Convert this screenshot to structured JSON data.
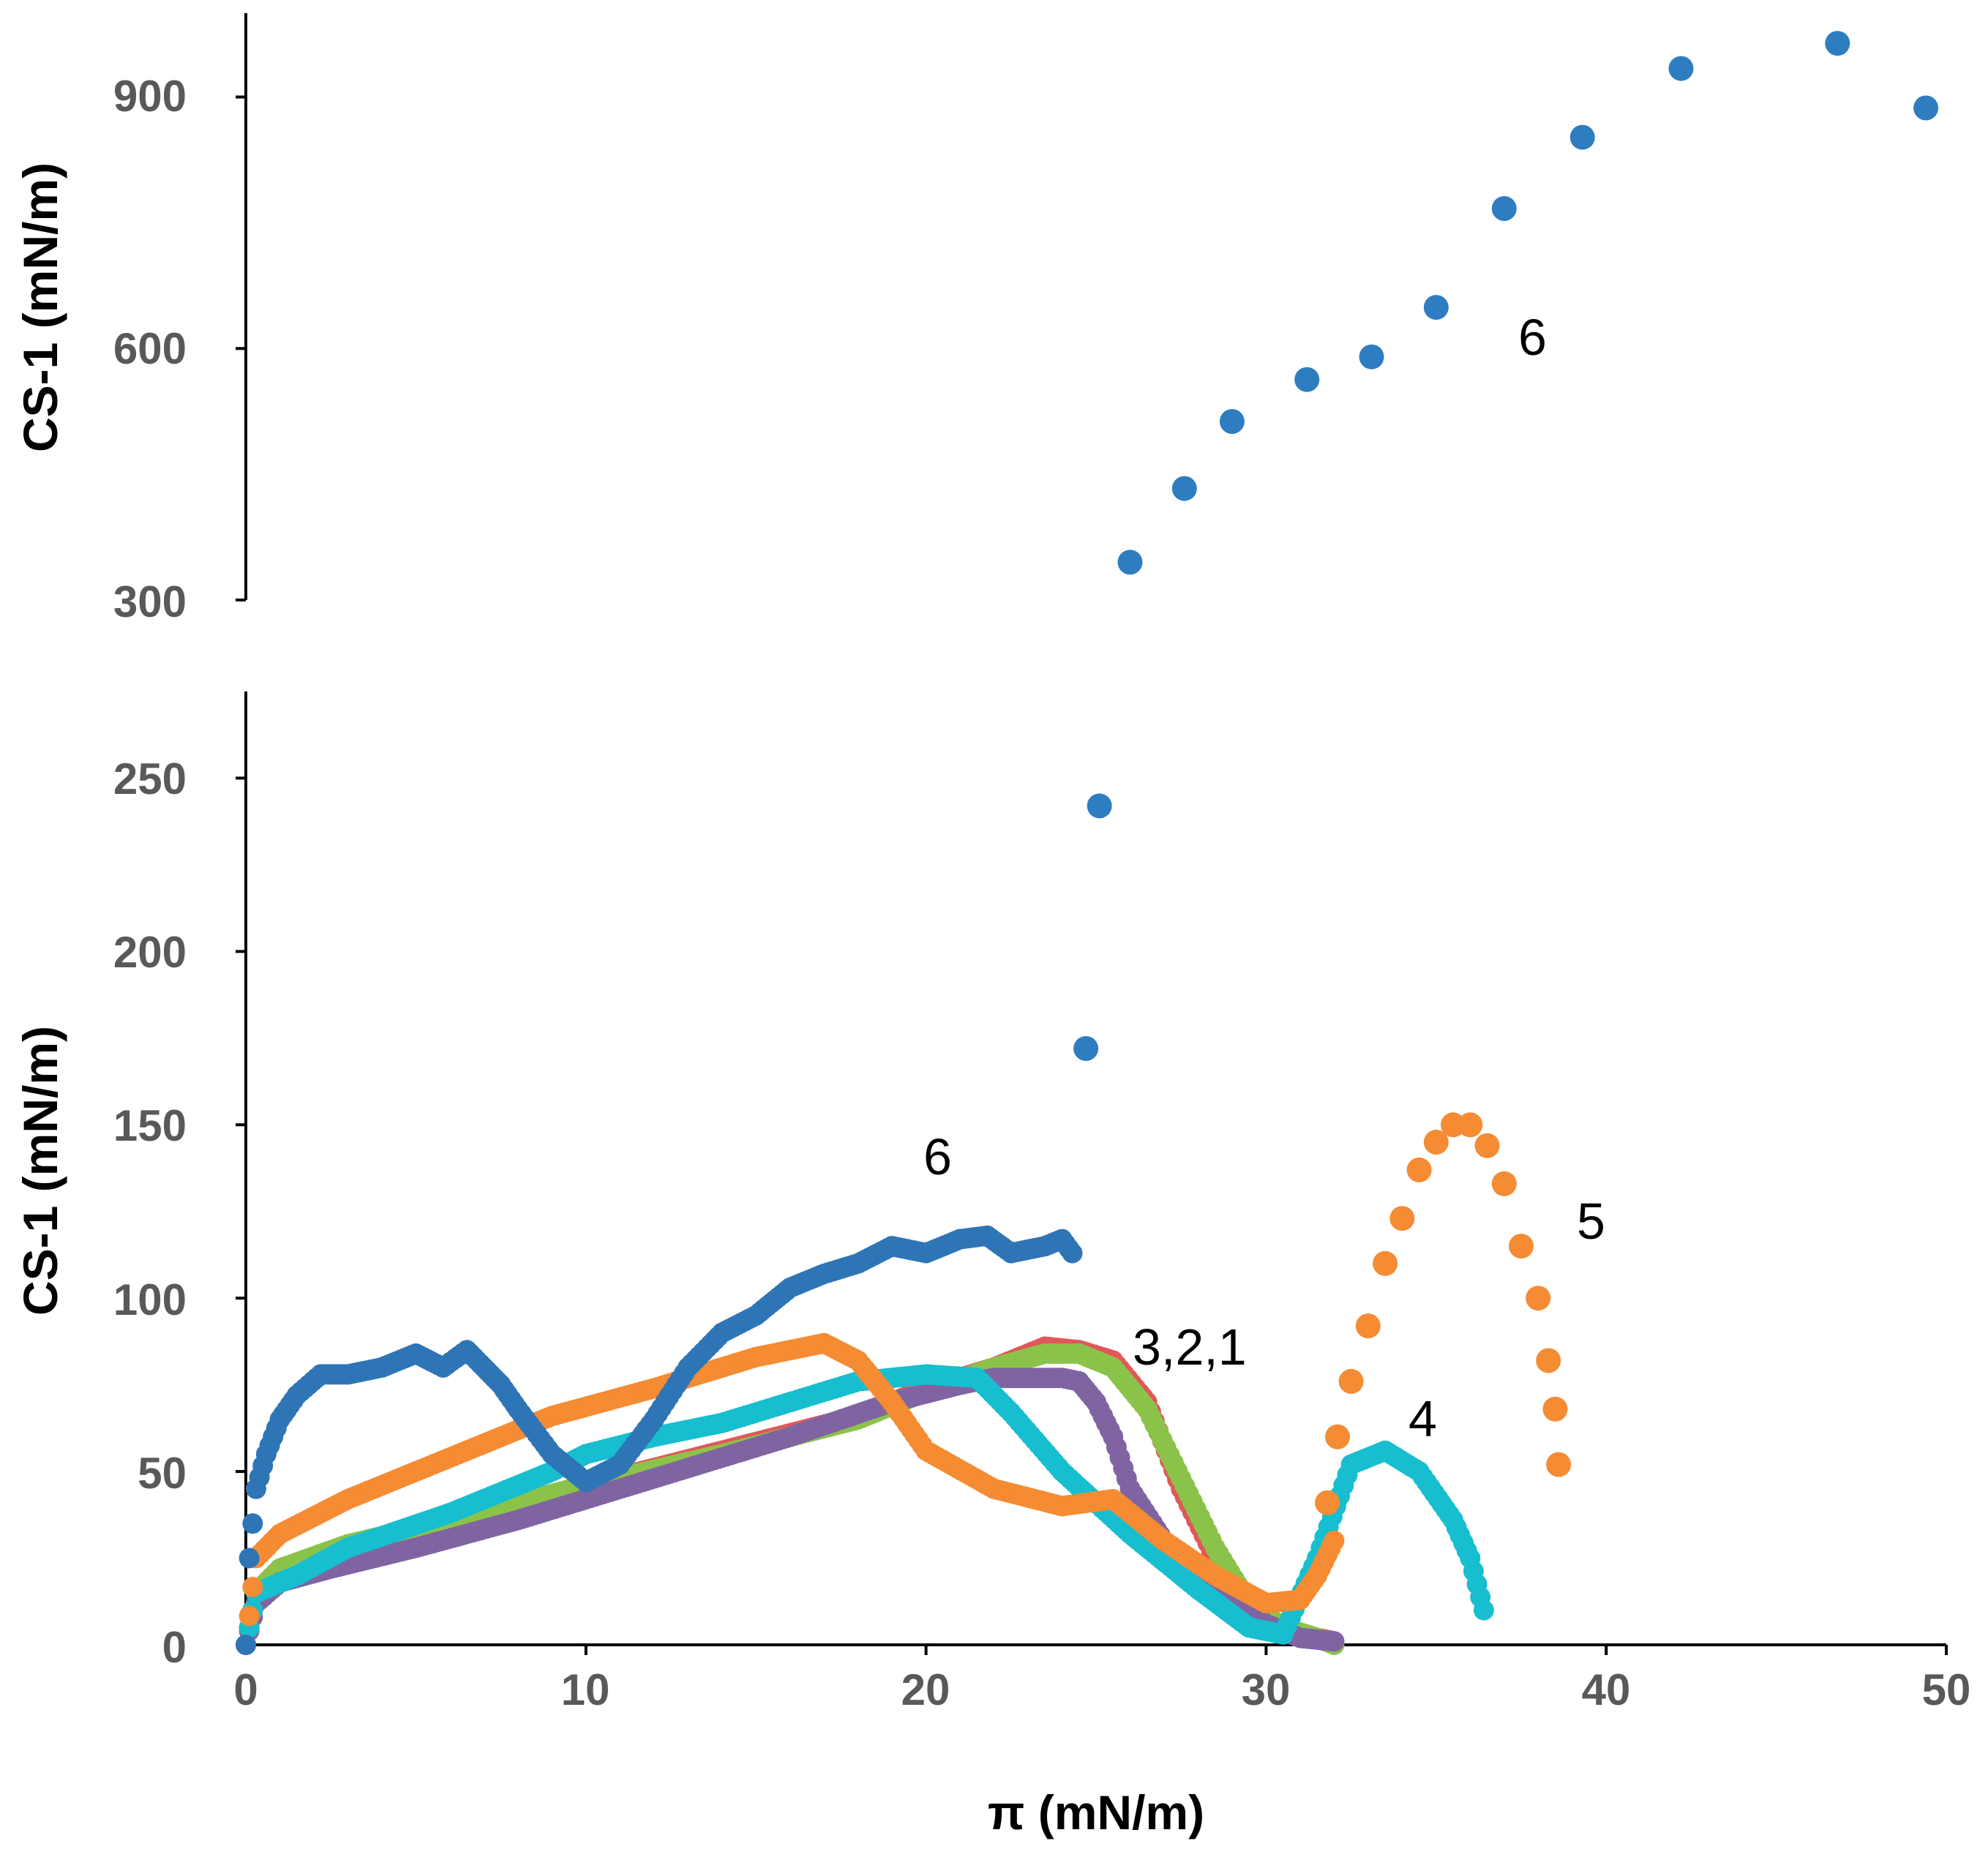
{
  "chart_data": {
    "type": "scatter",
    "title": "",
    "xlabel": "π (mN/m)",
    "xlim": [
      0,
      50
    ],
    "x_ticks": [
      "0",
      "10",
      "20",
      "30",
      "40",
      "50"
    ],
    "panels": [
      {
        "name": "upper",
        "ylabel": "CS-1 (mN/m)",
        "ylim": [
          300,
          1000
        ],
        "y_ticks": [
          "300",
          "600",
          "900"
        ],
        "series": [
          {
            "name": "6 (high)",
            "color": "#2E7DC1",
            "x": [
              26.0,
              27.6,
              29.0,
              31.2,
              33.1,
              35.0,
              37.0,
              39.3,
              42.2,
              46.8,
              49.4
            ],
            "y": [
              345,
              433,
              513,
              563,
              590,
              649,
              767,
              852,
              934,
              964,
              887
            ]
          }
        ]
      },
      {
        "name": "lower",
        "ylabel": "CS-1 (mN/m)",
        "ylim": [
          0,
          275
        ],
        "y_ticks": [
          "0",
          "50",
          "100",
          "150",
          "200",
          "250"
        ],
        "series": [
          {
            "name": "1",
            "color": "#E15759",
            "x": [
              0,
              0.3,
              1,
              3,
              6,
              10,
              14,
              18,
              20,
              22,
              23.5,
              24.5,
              25.5,
              26.5,
              27.5,
              28.5,
              29.5,
              30.5,
              31.5,
              32
            ],
            "y": [
              0,
              15,
              22,
              28,
              36,
              46,
              56,
              66,
              74,
              80,
              86,
              85,
              82,
              70,
              45,
              25,
              12,
              5,
              2,
              1
            ]
          },
          {
            "name": "2",
            "color": "#8BC34A",
            "x": [
              0,
              0.3,
              1,
              3,
              6,
              10,
              14,
              18,
              20,
              22,
              23.5,
              24.5,
              25.5,
              26.5,
              27.5,
              28.5,
              29.5,
              30.5,
              31.5,
              32
            ],
            "y": [
              0,
              15,
              22,
              29,
              36,
              46,
              55,
              65,
              73,
              80,
              84,
              84,
              80,
              68,
              48,
              28,
              12,
              5,
              2,
              0
            ]
          },
          {
            "name": "3",
            "color": "#8064A2",
            "x": [
              0,
              0.3,
              1,
              2.5,
              5,
              8,
              12,
              16,
              19,
              21,
              22,
              23,
              24,
              24.5,
              25,
              25.5,
              26,
              27,
              28,
              29,
              30,
              31,
              32
            ],
            "y": [
              0,
              12,
              18,
              22,
              28,
              36,
              48,
              60,
              70,
              75,
              77,
              77,
              77,
              76,
              70,
              60,
              45,
              30,
              22,
              14,
              6,
              2,
              1
            ]
          },
          {
            "name": "4",
            "color": "#17BECF",
            "x": [
              0,
              0.3,
              1.5,
              3,
              6,
              9,
              10,
              12,
              14,
              16,
              18,
              20,
              21.5,
              22.5,
              24,
              26,
              28,
              29.5,
              30.5,
              31.5,
              32.5,
              33.5,
              34.5,
              35.5,
              36,
              36.4
            ],
            "y": [
              0,
              15,
              20,
              28,
              38,
              50,
              55,
              60,
              64,
              70,
              76,
              78,
              77,
              67,
              50,
              32,
              16,
              5,
              3,
              25,
              52,
              56,
              50,
              36,
              25,
              10
            ]
          },
          {
            "name": "5",
            "color": "#F58B32",
            "x": [
              0,
              0.3,
              1,
              3,
              6,
              9,
              12,
              15,
              17,
              18,
              19,
              20,
              22,
              24,
              25.5,
              27,
              28.5,
              30,
              31,
              31.5,
              32
            ],
            "y": [
              0,
              25,
              32,
              42,
              54,
              66,
              74,
              83,
              87,
              82,
              70,
              56,
              45,
              40,
              42,
              30,
              20,
              12,
              13,
              20,
              30
            ]
          },
          {
            "name": "5 (dotted)",
            "color": "#F58B32",
            "x": [
              31.8,
              32.1,
              32.5,
              33.0,
              33.5,
              34.0,
              34.5,
              35.0,
              35.5,
              36.0,
              36.5,
              37.0,
              37.5,
              38.0,
              38.3,
              38.5,
              38.6
            ],
            "y": [
              41,
              60,
              76,
              92,
              110,
              123,
              137,
              145,
              150,
              150,
              144,
              133,
              115,
              100,
              82,
              68,
              52
            ]
          },
          {
            "name": "6",
            "color": "#2E75B6",
            "x": [
              0,
              0.1,
              0.3,
              0.6,
              1,
              1.5,
              2.2,
              3,
              4,
              5,
              5.8,
              6.5,
              7,
              7.5,
              8,
              9,
              10,
              11,
              12,
              13,
              14,
              15,
              16,
              17,
              18,
              19,
              20,
              21,
              21.8,
              22.5,
              23.5,
              24,
              24.3
            ],
            "y": [
              0,
              25,
              45,
              55,
              65,
              72,
              78,
              78,
              80,
              84,
              80,
              85,
              80,
              75,
              68,
              55,
              47,
              52,
              65,
              80,
              90,
              95,
              103,
              107,
              110,
              115,
              113,
              117,
              118,
              113,
              115,
              117,
              113
            ]
          },
          {
            "name": "6 (dotted)",
            "color": "#2E7DC1",
            "x": [
              24.7,
              25.1
            ],
            "y": [
              172,
              242
            ]
          }
        ]
      }
    ],
    "annotations": [
      "6",
      "6",
      "5",
      "3,2,1",
      "4"
    ]
  }
}
